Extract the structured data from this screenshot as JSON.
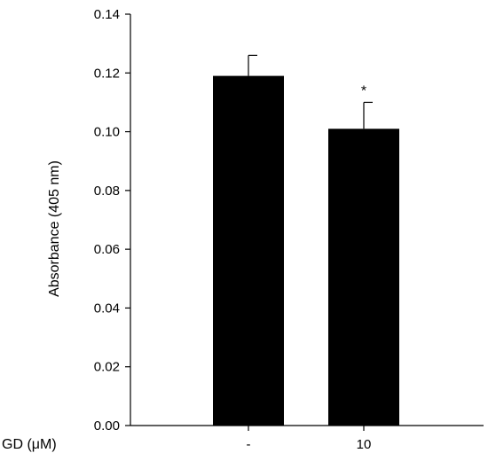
{
  "chart_data": {
    "type": "bar",
    "title": "",
    "xlabel": "GD (μM)",
    "ylabel": "Absorbance (405 nm)",
    "categories": [
      "-",
      "10"
    ],
    "values": [
      0.119,
      0.101
    ],
    "error_bars": [
      0.007,
      0.009
    ],
    "significance": [
      "",
      "*"
    ],
    "ylim": [
      0,
      0.14
    ],
    "yticks": [
      "0.00",
      "0.02",
      "0.04",
      "0.06",
      "0.08",
      "0.10",
      "0.12",
      "0.14"
    ],
    "bar_color": "#000000",
    "grid": false,
    "legend": "none"
  }
}
